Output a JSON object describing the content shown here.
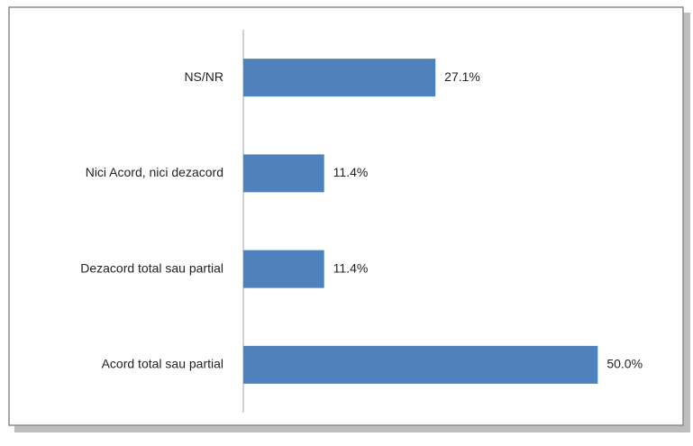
{
  "chart_data": {
    "type": "barh",
    "categories": [
      "NS/NR",
      "Nici Acord, nici dezacord",
      "Dezacord total sau partial",
      "Acord total sau partial"
    ],
    "values": [
      27.1,
      11.4,
      11.4,
      50.0
    ],
    "value_labels": [
      "27.1%",
      "11.4%",
      "11.4%",
      "50.0%"
    ],
    "color": "#4f81bd",
    "xlim": [
      0,
      60
    ]
  }
}
